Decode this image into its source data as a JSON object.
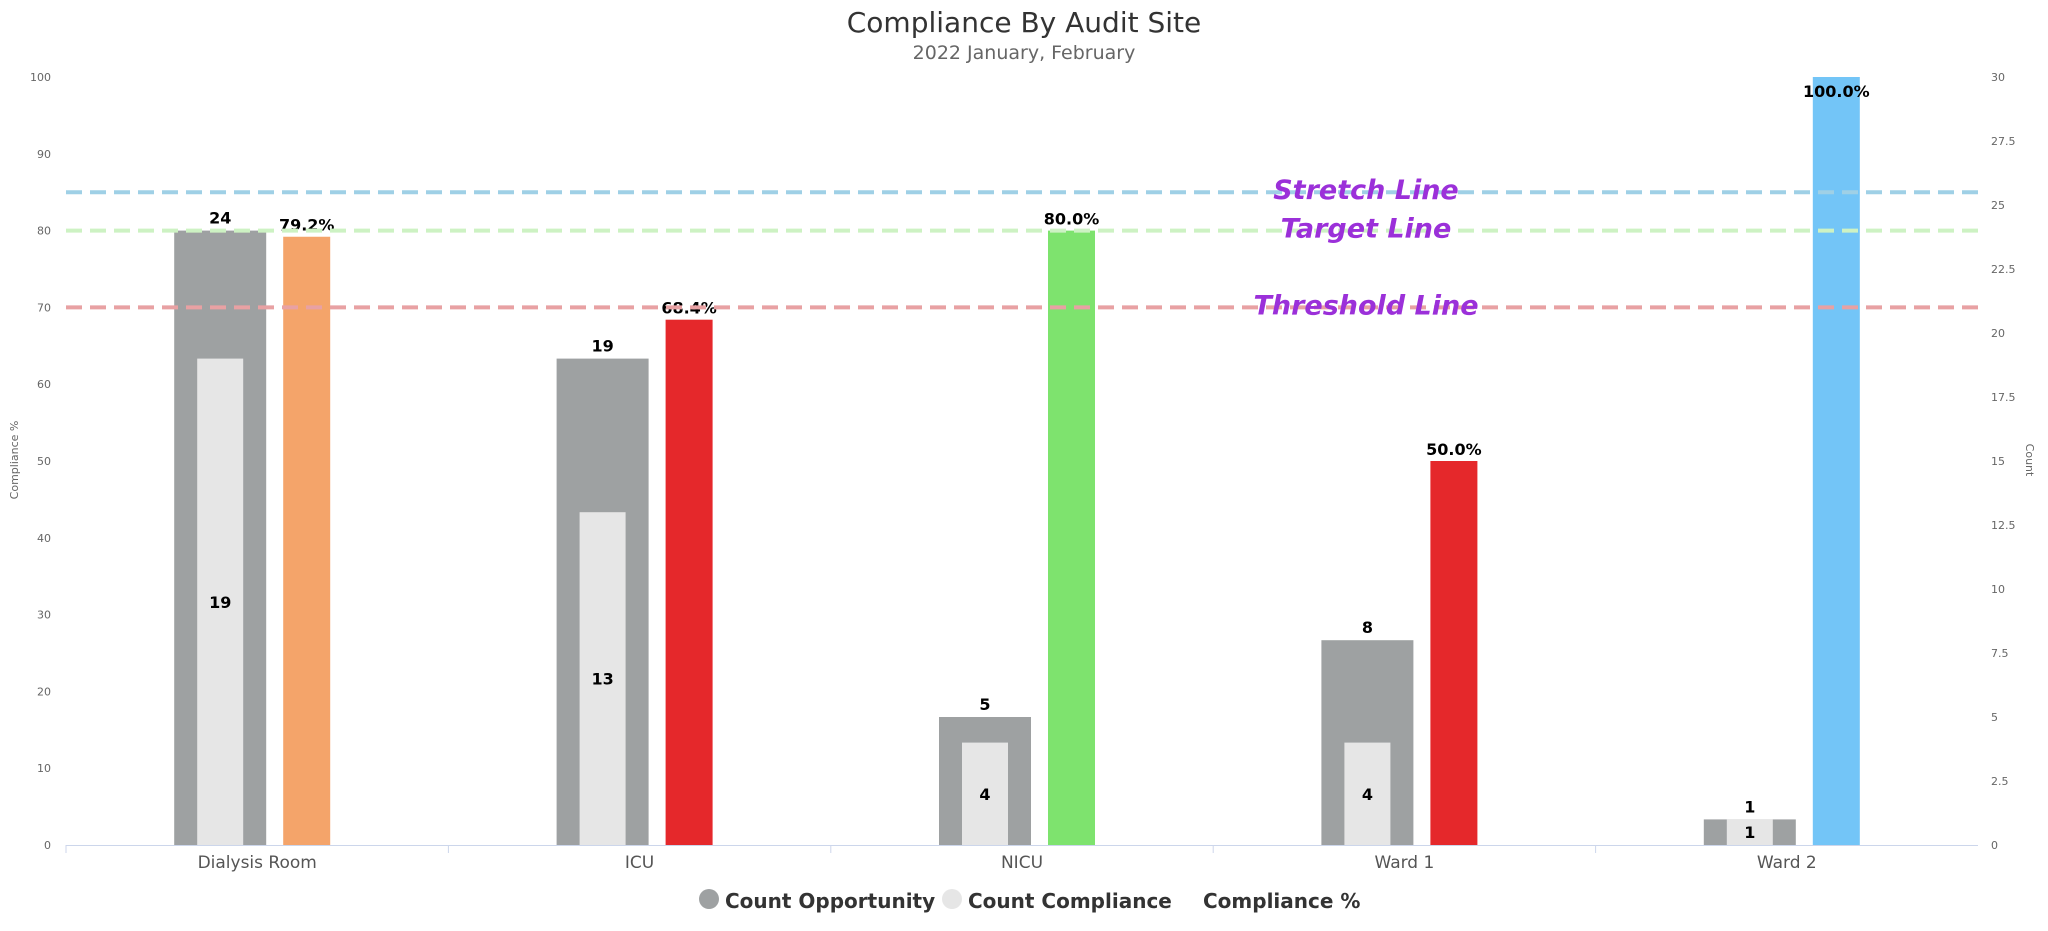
{
  "chart_data": {
    "type": "bar",
    "title": "Compliance By Audit Site",
    "subtitle": "2022 January, February",
    "categories": [
      "Dialysis Room",
      "ICU",
      "NICU",
      "Ward 1",
      "Ward 2"
    ],
    "y_left": {
      "label": "Compliance %",
      "range": [
        0,
        100
      ],
      "ticks": [
        "0",
        "10",
        "20",
        "30",
        "40",
        "50",
        "60",
        "70",
        "80",
        "90",
        "100"
      ]
    },
    "y_right": {
      "label": "Count",
      "range": [
        0,
        30
      ],
      "ticks": [
        "0",
        "2.5",
        "5",
        "7.5",
        "10",
        "12.5",
        "15",
        "17.5",
        "20",
        "22.5",
        "25",
        "27.5",
        "30"
      ]
    },
    "series": [
      {
        "name": "Count Opportunity",
        "axis": "right",
        "color": "#9ea1a2",
        "values": [
          24,
          19,
          5,
          8,
          1
        ],
        "labels": [
          "24",
          "19",
          "5",
          "8",
          "1"
        ]
      },
      {
        "name": "Count Compliance",
        "axis": "right",
        "color": "#e6e6e6",
        "values": [
          19,
          13,
          4,
          4,
          1
        ],
        "labels": [
          "19",
          "13",
          "4",
          "4",
          "1"
        ]
      },
      {
        "name": "Compliance %",
        "axis": "left",
        "values": [
          79.2,
          68.4,
          80.0,
          50.0,
          100.0
        ],
        "labels": [
          "79.2%",
          "68.4%",
          "80.0%",
          "50.0%",
          "100.0%"
        ],
        "colors": [
          "#f4a46a",
          "#e5282b",
          "#7ee36e",
          "#e5282b",
          "#73c5f7"
        ]
      }
    ],
    "reference_lines": [
      {
        "name": "Stretch Line",
        "value": 85,
        "color": "#9fd0e6"
      },
      {
        "name": "Target Line",
        "value": 80,
        "color": "#cdf2c3"
      },
      {
        "name": "Threshold Line",
        "value": 70,
        "color": "#e8a1a3"
      }
    ],
    "legend": {
      "position": "bottom",
      "items": [
        {
          "label": "Count Opportunity",
          "color": "#9ea1a2",
          "marker": "circle"
        },
        {
          "label": "Count Compliance",
          "color": "#e6e6e6",
          "marker": "circle"
        },
        {
          "label": "Compliance %",
          "marker": "none"
        }
      ]
    },
    "grid": false
  }
}
